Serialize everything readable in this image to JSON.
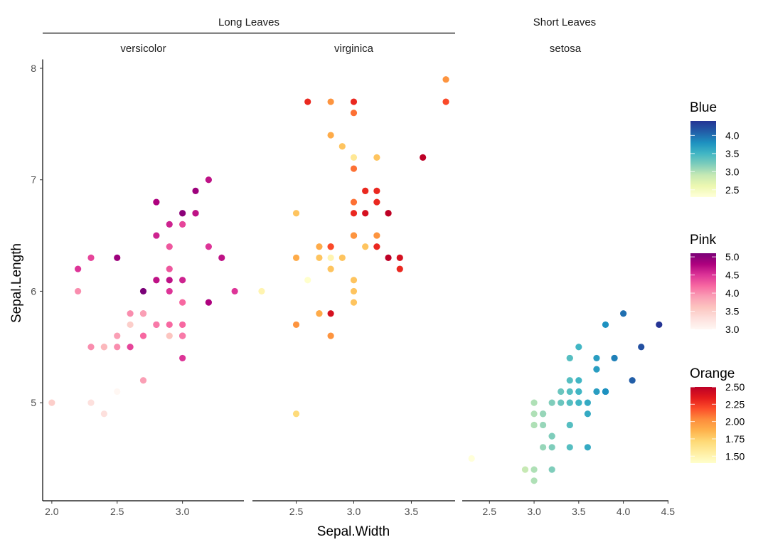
{
  "chart_data": {
    "type": "scatter",
    "xlabel": "Sepal.Width",
    "ylabel": "Sepal.Length",
    "ylim": [
      4.12,
      8.08
    ],
    "yticks": [
      5,
      6,
      7,
      8
    ],
    "grid": false,
    "legend_position": "right",
    "strip_groups": [
      {
        "label": "Long Leaves",
        "panels": [
          "versicolor",
          "virginica"
        ]
      },
      {
        "label": "Short Leaves",
        "panels": [
          "setosa"
        ]
      }
    ],
    "panels": [
      {
        "name": "versicolor",
        "color_scale": "Pink",
        "xlim": [
          1.93,
          3.47
        ],
        "xticks": [
          "2.0",
          "2.5",
          "3.0"
        ],
        "points": [
          [
            3.2,
            7.0,
            4.7
          ],
          [
            3.2,
            6.4,
            4.5
          ],
          [
            3.1,
            6.9,
            4.9
          ],
          [
            2.3,
            5.5,
            4.0
          ],
          [
            2.8,
            6.5,
            4.6
          ],
          [
            2.8,
            5.7,
            4.5
          ],
          [
            3.3,
            6.3,
            4.7
          ],
          [
            2.4,
            4.9,
            3.3
          ],
          [
            2.9,
            6.6,
            4.6
          ],
          [
            2.7,
            5.2,
            3.9
          ],
          [
            2.0,
            5.0,
            3.5
          ],
          [
            3.0,
            5.9,
            4.2
          ],
          [
            2.2,
            6.0,
            4.0
          ],
          [
            2.9,
            6.1,
            4.7
          ],
          [
            2.9,
            5.6,
            3.6
          ],
          [
            3.1,
            6.7,
            4.4
          ],
          [
            3.0,
            5.6,
            4.5
          ],
          [
            2.7,
            5.8,
            4.1
          ],
          [
            2.2,
            6.2,
            4.5
          ],
          [
            2.5,
            5.6,
            3.9
          ],
          [
            3.2,
            5.9,
            4.8
          ],
          [
            2.8,
            6.1,
            4.0
          ],
          [
            2.5,
            6.3,
            4.9
          ],
          [
            2.8,
            6.1,
            4.7
          ],
          [
            2.9,
            6.4,
            4.3
          ],
          [
            3.0,
            6.6,
            4.4
          ],
          [
            2.8,
            6.8,
            4.8
          ],
          [
            3.0,
            6.7,
            5.0
          ],
          [
            2.9,
            6.0,
            4.5
          ],
          [
            2.6,
            5.7,
            3.5
          ],
          [
            2.4,
            5.5,
            3.8
          ],
          [
            2.4,
            5.5,
            3.7
          ],
          [
            2.7,
            5.8,
            3.9
          ],
          [
            2.7,
            6.0,
            5.1
          ],
          [
            3.0,
            5.4,
            4.5
          ],
          [
            3.4,
            6.0,
            4.5
          ],
          [
            3.1,
            6.7,
            4.7
          ],
          [
            2.3,
            6.3,
            4.4
          ],
          [
            3.0,
            5.6,
            4.1
          ],
          [
            2.5,
            5.5,
            4.0
          ],
          [
            2.6,
            5.5,
            4.4
          ],
          [
            3.0,
            6.1,
            4.6
          ],
          [
            2.6,
            5.8,
            4.0
          ],
          [
            2.3,
            5.0,
            3.3
          ],
          [
            2.7,
            5.6,
            4.2
          ],
          [
            3.0,
            5.7,
            4.2
          ],
          [
            2.9,
            5.7,
            4.2
          ],
          [
            2.9,
            6.2,
            4.3
          ],
          [
            2.5,
            5.1,
            3.0
          ],
          [
            2.8,
            5.7,
            4.1
          ]
        ]
      },
      {
        "name": "virginica",
        "color_scale": "Orange",
        "xlim": [
          2.12,
          3.88
        ],
        "xticks": [
          "2.5",
          "3.0",
          "3.5"
        ],
        "points": [
          [
            3.3,
            6.3,
            2.5
          ],
          [
            2.7,
            5.8,
            1.9
          ],
          [
            3.0,
            7.1,
            2.1
          ],
          [
            2.9,
            6.3,
            1.8
          ],
          [
            3.0,
            6.5,
            2.2
          ],
          [
            3.0,
            7.6,
            2.1
          ],
          [
            2.5,
            4.9,
            1.7
          ],
          [
            2.9,
            7.3,
            1.8
          ],
          [
            2.5,
            6.7,
            1.8
          ],
          [
            3.6,
            7.2,
            2.5
          ],
          [
            3.2,
            6.5,
            2.0
          ],
          [
            2.7,
            6.4,
            1.9
          ],
          [
            3.0,
            6.8,
            2.1
          ],
          [
            2.5,
            5.7,
            2.0
          ],
          [
            2.8,
            5.8,
            2.4
          ],
          [
            3.2,
            6.4,
            2.3
          ],
          [
            3.0,
            6.5,
            1.8
          ],
          [
            3.8,
            7.7,
            2.2
          ],
          [
            2.6,
            7.7,
            2.3
          ],
          [
            2.2,
            6.0,
            1.5
          ],
          [
            3.2,
            6.9,
            2.3
          ],
          [
            2.8,
            5.6,
            2.0
          ],
          [
            2.8,
            7.7,
            2.0
          ],
          [
            2.7,
            6.3,
            1.8
          ],
          [
            3.3,
            6.7,
            2.1
          ],
          [
            3.2,
            7.2,
            1.8
          ],
          [
            2.8,
            6.2,
            1.8
          ],
          [
            3.0,
            6.1,
            1.8
          ],
          [
            2.8,
            6.4,
            2.1
          ],
          [
            3.0,
            7.2,
            1.6
          ],
          [
            2.8,
            7.4,
            1.9
          ],
          [
            3.8,
            7.9,
            2.0
          ],
          [
            2.8,
            6.4,
            2.2
          ],
          [
            2.8,
            6.3,
            1.5
          ],
          [
            2.6,
            6.1,
            1.4
          ],
          [
            3.0,
            7.7,
            2.3
          ],
          [
            3.4,
            6.3,
            2.4
          ],
          [
            3.1,
            6.4,
            1.8
          ],
          [
            3.0,
            6.0,
            1.8
          ],
          [
            3.1,
            6.9,
            2.1
          ],
          [
            3.1,
            6.7,
            2.4
          ],
          [
            3.1,
            6.9,
            2.3
          ],
          [
            2.7,
            5.8,
            1.9
          ],
          [
            3.2,
            6.8,
            2.3
          ],
          [
            3.3,
            6.7,
            2.5
          ],
          [
            3.0,
            6.7,
            2.3
          ],
          [
            2.5,
            6.3,
            1.9
          ],
          [
            3.0,
            6.5,
            2.0
          ],
          [
            3.4,
            6.2,
            2.3
          ],
          [
            3.0,
            5.9,
            1.8
          ]
        ]
      },
      {
        "name": "setosa",
        "color_scale": "Blue",
        "xlim": [
          2.195,
          4.505
        ],
        "xticks": [
          "2.5",
          "3.0",
          "3.5",
          "4.0",
          "4.5"
        ],
        "points": [
          [
            3.5,
            5.1,
            3.5
          ],
          [
            3.0,
            4.9,
            3.0
          ],
          [
            3.2,
            4.7,
            3.2
          ],
          [
            3.1,
            4.6,
            3.1
          ],
          [
            3.6,
            5.0,
            3.6
          ],
          [
            3.9,
            5.4,
            3.9
          ],
          [
            3.4,
            4.6,
            3.4
          ],
          [
            3.4,
            5.0,
            3.4
          ],
          [
            2.9,
            4.4,
            2.9
          ],
          [
            3.1,
            4.9,
            3.1
          ],
          [
            3.7,
            5.4,
            3.7
          ],
          [
            3.4,
            4.8,
            3.4
          ],
          [
            3.0,
            4.8,
            3.0
          ],
          [
            3.0,
            4.3,
            3.0
          ],
          [
            4.0,
            5.8,
            4.0
          ],
          [
            4.4,
            5.7,
            4.4
          ],
          [
            3.9,
            5.4,
            3.9
          ],
          [
            3.5,
            5.1,
            3.5
          ],
          [
            3.8,
            5.7,
            3.8
          ],
          [
            3.8,
            5.1,
            3.8
          ],
          [
            3.4,
            5.4,
            3.4
          ],
          [
            3.7,
            5.1,
            3.7
          ],
          [
            3.6,
            4.6,
            3.6
          ],
          [
            3.3,
            5.1,
            3.3
          ],
          [
            3.4,
            4.8,
            3.4
          ],
          [
            3.0,
            5.0,
            3.0
          ],
          [
            3.4,
            5.0,
            3.4
          ],
          [
            3.5,
            5.2,
            3.5
          ],
          [
            3.4,
            5.2,
            3.4
          ],
          [
            3.2,
            4.7,
            3.2
          ],
          [
            3.1,
            4.8,
            3.1
          ],
          [
            3.4,
            5.4,
            3.4
          ],
          [
            4.1,
            5.2,
            4.1
          ],
          [
            4.2,
            5.5,
            4.2
          ],
          [
            3.1,
            4.9,
            3.1
          ],
          [
            3.2,
            5.0,
            3.2
          ],
          [
            3.5,
            5.5,
            3.5
          ],
          [
            3.6,
            4.9,
            3.6
          ],
          [
            3.0,
            4.4,
            3.0
          ],
          [
            3.4,
            5.1,
            3.4
          ],
          [
            3.5,
            5.0,
            3.5
          ],
          [
            2.3,
            4.5,
            2.3
          ],
          [
            3.2,
            4.4,
            3.2
          ],
          [
            3.5,
            5.0,
            3.5
          ],
          [
            3.8,
            5.1,
            3.8
          ],
          [
            3.0,
            4.8,
            3.0
          ],
          [
            3.8,
            5.1,
            3.8
          ],
          [
            3.2,
            4.6,
            3.2
          ],
          [
            3.7,
            5.3,
            3.7
          ],
          [
            3.3,
            5.0,
            3.3
          ]
        ]
      }
    ],
    "legends": [
      {
        "title": "Blue",
        "range": [
          2.3,
          4.4
        ],
        "ticks": [
          "4.0",
          "3.5",
          "3.0",
          "2.5"
        ],
        "colors": [
          "#ffffd9",
          "#edf8b1",
          "#c7e9b4",
          "#7fcdbb",
          "#41b6c4",
          "#1d91c0",
          "#225ea8",
          "#253494"
        ]
      },
      {
        "title": "Pink",
        "range": [
          3.0,
          5.1
        ],
        "ticks": [
          "5.0",
          "4.5",
          "4.0",
          "3.5",
          "3.0"
        ],
        "colors": [
          "#fff7f3",
          "#fde0dd",
          "#fcc5c0",
          "#fa9fb5",
          "#f768a1",
          "#dd3497",
          "#ae017e",
          "#7a0177"
        ]
      },
      {
        "title": "Orange",
        "range": [
          1.4,
          2.5
        ],
        "ticks": [
          "2.50",
          "2.25",
          "2.00",
          "1.75",
          "1.50"
        ],
        "colors": [
          "#ffffcc",
          "#ffeda0",
          "#fed976",
          "#feb24c",
          "#fd8d3c",
          "#fc4e2a",
          "#e31a1c",
          "#bd0026"
        ]
      }
    ]
  }
}
